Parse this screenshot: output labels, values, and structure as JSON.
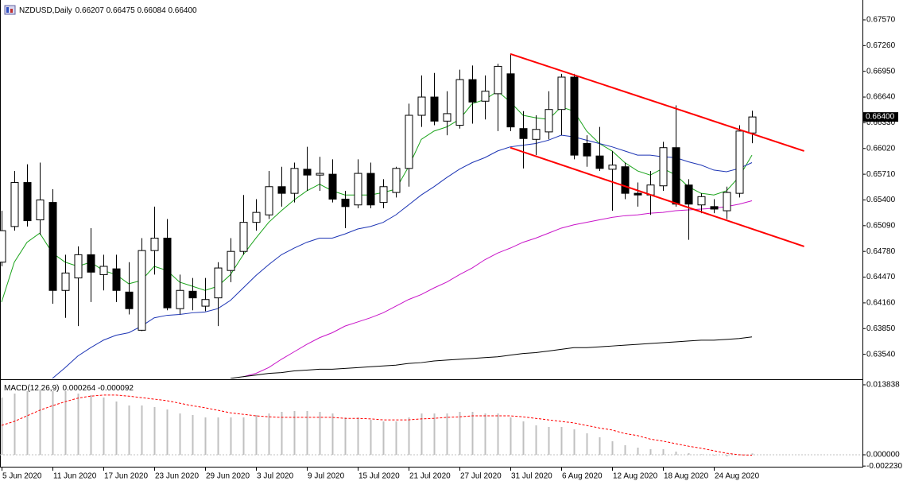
{
  "chart_data": [
    {
      "type": "candlestick",
      "title": "NZDUSD,Daily",
      "subtitle": "0.66207 0.66475 0.66084 0.66400",
      "categories": [
        "5 Jun 2020",
        null,
        null,
        null,
        "11 Jun 2020",
        null,
        null,
        null,
        "17 Jun 2020",
        null,
        null,
        null,
        "23 Jun 2020",
        null,
        null,
        null,
        "29 Jun 2020",
        null,
        null,
        null,
        "3 Jul 2020",
        null,
        null,
        null,
        "9 Jul 2020",
        null,
        null,
        null,
        "15 Jul 2020",
        null,
        null,
        null,
        "21 Jul 2020",
        null,
        null,
        null,
        "27 Jul 2020",
        null,
        null,
        null,
        "31 Jul 2020",
        null,
        null,
        null,
        "6 Aug 2020",
        null,
        null,
        null,
        "12 Aug 2020",
        null,
        null,
        null,
        "18 Aug 2020",
        null,
        null,
        null,
        "24 Aug 2020",
        null,
        null,
        null
      ],
      "open": [
        0.6465,
        0.6508,
        0.6561,
        0.6516,
        0.6537,
        0.6431,
        0.6446,
        0.6474,
        0.645,
        0.6457,
        0.6429,
        0.6383,
        0.6479,
        0.6494,
        0.6409,
        0.643,
        0.6412,
        0.6422,
        0.6455,
        0.6478,
        0.6513,
        0.6522,
        0.6556,
        0.6548,
        0.6577,
        0.657,
        0.6571,
        0.6541,
        0.6534,
        0.6572,
        0.6537,
        0.6549,
        0.6578,
        0.6642,
        0.6664,
        0.6635,
        0.663,
        0.6685,
        0.6659,
        0.6668,
        0.6692,
        0.6626,
        0.6613,
        0.6622,
        0.6649,
        0.6688,
        0.6608,
        0.6593,
        0.6577,
        0.658,
        0.6548,
        0.6546,
        0.6557,
        0.6603,
        0.6558,
        0.6534,
        0.6532,
        0.6527,
        0.6548,
        0.66207
      ],
      "high": [
        0.6527,
        0.6575,
        0.6583,
        0.6585,
        0.6553,
        0.6474,
        0.6484,
        0.6506,
        0.6474,
        0.6474,
        0.6465,
        0.6494,
        0.6532,
        0.6517,
        0.645,
        0.6446,
        0.6446,
        0.6465,
        0.6494,
        0.6546,
        0.6541,
        0.6575,
        0.658,
        0.6585,
        0.6604,
        0.6592,
        0.6589,
        0.6551,
        0.6589,
        0.6585,
        0.6565,
        0.658,
        0.6656,
        0.669,
        0.6693,
        0.6671,
        0.6697,
        0.6702,
        0.669,
        0.6704,
        0.6716,
        0.6647,
        0.6642,
        0.6671,
        0.6692,
        0.6692,
        0.6618,
        0.6628,
        0.6599,
        0.6585,
        0.6561,
        0.6575,
        0.661,
        0.6654,
        0.6565,
        0.6548,
        0.6541,
        0.6556,
        0.663,
        0.66475
      ],
      "low": [
        0.646,
        0.6503,
        0.6508,
        0.6498,
        0.6415,
        0.6398,
        0.6388,
        0.6417,
        0.6431,
        0.6417,
        0.6402,
        0.6382,
        0.645,
        0.6407,
        0.6402,
        0.6407,
        0.6406,
        0.6388,
        0.6441,
        0.6474,
        0.6503,
        0.6517,
        0.6532,
        0.6537,
        0.6551,
        0.6551,
        0.6537,
        0.6506,
        0.653,
        0.653,
        0.653,
        0.6543,
        0.6556,
        0.6628,
        0.663,
        0.6618,
        0.6626,
        0.6632,
        0.6637,
        0.6623,
        0.6623,
        0.6578,
        0.6594,
        0.6613,
        0.6618,
        0.6589,
        0.658,
        0.6575,
        0.6527,
        0.6541,
        0.6532,
        0.6522,
        0.6551,
        0.6532,
        0.6492,
        0.6524,
        0.6524,
        0.6517,
        0.6543,
        0.66084
      ],
      "close": [
        0.6503,
        0.6561,
        0.6515,
        0.654,
        0.6431,
        0.6452,
        0.6474,
        0.6453,
        0.646,
        0.6431,
        0.6409,
        0.6479,
        0.6494,
        0.641,
        0.6431,
        0.6422,
        0.642,
        0.6458,
        0.6478,
        0.6513,
        0.6525,
        0.6556,
        0.6548,
        0.6578,
        0.657,
        0.6572,
        0.6541,
        0.6532,
        0.6572,
        0.6534,
        0.6556,
        0.6578,
        0.6642,
        0.6664,
        0.6635,
        0.6644,
        0.6685,
        0.6658,
        0.6671,
        0.6701,
        0.6628,
        0.6614,
        0.6625,
        0.6649,
        0.6688,
        0.6594,
        0.6593,
        0.6578,
        0.6582,
        0.6548,
        0.6546,
        0.6558,
        0.6603,
        0.6535,
        0.6535,
        0.6544,
        0.6529,
        0.6549,
        0.6623,
        0.664
      ],
      "up_color": "#ffffff",
      "down_color": "#000000",
      "series": [
        {
          "color": "#1aa31a",
          "values": [
            0.6417,
            0.6465,
            0.6489,
            0.65,
            0.6476,
            0.6465,
            0.646,
            0.6465,
            0.6455,
            0.645,
            0.6439,
            0.6443,
            0.646,
            0.6455,
            0.6441,
            0.6436,
            0.6431,
            0.6436,
            0.645,
            0.6474,
            0.6494,
            0.6513,
            0.6527,
            0.654,
            0.6551,
            0.6559,
            0.6551,
            0.6546,
            0.6546,
            0.6546,
            0.6549,
            0.6553,
            0.658,
            0.6613,
            0.6623,
            0.6628,
            0.6637,
            0.6656,
            0.6661,
            0.6671,
            0.6658,
            0.6642,
            0.6639,
            0.6637,
            0.6652,
            0.6647,
            0.6623,
            0.6608,
            0.6599,
            0.6585,
            0.6575,
            0.657,
            0.6578,
            0.657,
            0.6556,
            0.6548,
            0.6546,
            0.6551,
            0.6568,
            0.6594
          ]
        },
        {
          "color": "#1c34b4",
          "values": [
            null,
            null,
            null,
            null,
            0.6325,
            0.6338,
            0.6352,
            0.6362,
            0.6371,
            0.6377,
            0.638,
            0.6388,
            0.6398,
            0.6401,
            0.6402,
            0.6404,
            0.6405,
            0.6409,
            0.6419,
            0.6434,
            0.6449,
            0.6462,
            0.6474,
            0.6482,
            0.6489,
            0.6494,
            0.6494,
            0.6499,
            0.6505,
            0.6508,
            0.6513,
            0.6522,
            0.6534,
            0.6546,
            0.6556,
            0.6567,
            0.6577,
            0.6585,
            0.6591,
            0.6599,
            0.6604,
            0.6606,
            0.6608,
            0.6612,
            0.6618,
            0.6616,
            0.6612,
            0.6608,
            0.6604,
            0.6599,
            0.6594,
            0.6594,
            0.6592,
            0.6591,
            0.6586,
            0.6582,
            0.6576,
            0.6574,
            0.6578,
            0.6585
          ]
        },
        {
          "color": "#c814c8",
          "values": [
            null,
            null,
            null,
            null,
            null,
            null,
            null,
            null,
            null,
            null,
            null,
            null,
            null,
            null,
            null,
            null,
            null,
            null,
            null,
            0.6327,
            0.6331,
            0.6338,
            0.6348,
            0.6357,
            0.6366,
            0.6374,
            0.638,
            0.6388,
            0.6393,
            0.6398,
            0.6404,
            0.6412,
            0.642,
            0.6426,
            0.6434,
            0.6441,
            0.645,
            0.6458,
            0.6468,
            0.6476,
            0.6482,
            0.6489,
            0.6494,
            0.65,
            0.6506,
            0.651,
            0.6513,
            0.6516,
            0.6519,
            0.6521,
            0.6522,
            0.6524,
            0.6525,
            0.6527,
            0.6528,
            0.6529,
            0.653,
            0.6532,
            0.6535,
            0.6539
          ]
        },
        {
          "color": "#000000",
          "values": [
            null,
            null,
            null,
            null,
            null,
            null,
            null,
            null,
            null,
            null,
            null,
            null,
            null,
            null,
            null,
            null,
            null,
            null,
            0.6325,
            0.6327,
            0.6329,
            0.6331,
            0.6332,
            0.6334,
            0.6335,
            0.6336,
            0.6336,
            0.6337,
            0.6338,
            0.6339,
            0.634,
            0.6341,
            0.6343,
            0.6344,
            0.6346,
            0.6347,
            0.6348,
            0.6349,
            0.635,
            0.6351,
            0.6353,
            0.6355,
            0.6356,
            0.6358,
            0.636,
            0.6362,
            0.6362,
            0.6363,
            0.6364,
            0.6365,
            0.6366,
            0.6367,
            0.6368,
            0.6369,
            0.637,
            0.6371,
            0.6371,
            0.6372,
            0.6373,
            0.6375
          ]
        }
      ],
      "trendlines": [
        {
          "color": "#ff0000",
          "x": [
            40,
            63.1
          ],
          "y": [
            0.6716,
            0.6599
          ]
        },
        {
          "color": "#ff0000",
          "x": [
            40,
            63.1
          ],
          "y": [
            0.6603,
            0.6484
          ]
        }
      ],
      "ylim": [
        0.63249,
        0.67771
      ],
      "yticks": [
        {
          "value": 0.6757,
          "label": "0.67570"
        },
        {
          "value": 0.6726,
          "label": "0.67260"
        },
        {
          "value": 0.6695,
          "label": "0.66950"
        },
        {
          "value": 0.6664,
          "label": "0.66640"
        },
        {
          "value": 0.6633,
          "label": "0.66330"
        },
        {
          "value": 0.6602,
          "label": "0.66020"
        },
        {
          "value": 0.6571,
          "label": "0.65710"
        },
        {
          "value": 0.654,
          "label": "0.65400"
        },
        {
          "value": 0.6509,
          "label": "0.65090"
        },
        {
          "value": 0.6478,
          "label": "0.64780"
        },
        {
          "value": 0.6447,
          "label": "0.64470"
        },
        {
          "value": 0.6416,
          "label": "0.64160"
        },
        {
          "value": 0.6385,
          "label": "0.63850"
        },
        {
          "value": 0.6354,
          "label": "0.63540"
        }
      ],
      "price_label": {
        "value": 0.664,
        "label": "0.66400"
      }
    },
    {
      "type": "macd",
      "title": "MACD(12,26,9)",
      "subtitle": "0.000264 -0.000092",
      "histogram": {
        "color": "#c0c0c0",
        "values": [
          0.01132,
          0.0121,
          0.01258,
          0.01289,
          0.01258,
          0.01258,
          0.0121,
          0.01179,
          0.01132,
          0.01053,
          0.00975,
          0.00975,
          0.00943,
          0.00896,
          0.00817,
          0.00786,
          0.00739,
          0.00739,
          0.00739,
          0.00739,
          0.00786,
          0.00817,
          0.00849,
          0.00865,
          0.00865,
          0.00849,
          0.00817,
          0.00739,
          0.00739,
          0.00692,
          0.0066,
          0.0066,
          0.00739,
          0.00817,
          0.00817,
          0.00817,
          0.00849,
          0.00849,
          0.00817,
          0.00817,
          0.00739,
          0.0066,
          0.00582,
          0.0055,
          0.0055,
          0.00503,
          0.00424,
          0.00346,
          0.00267,
          0.00189,
          0.00141,
          0.0011,
          0.0011,
          0.00063,
          0.00031,
          0.0001,
          -0.00016,
          -0.00031,
          0.0001,
          0.000264
        ]
      },
      "signal": {
        "color": "#ff0000",
        "values": [
          0.00582,
          0.0066,
          0.0077,
          0.0088,
          0.0097,
          0.0105,
          0.0112,
          0.0116,
          0.0118,
          0.0118,
          0.0116,
          0.0113,
          0.011,
          0.0107,
          0.0102,
          0.0097,
          0.0093,
          0.0088,
          0.0083,
          0.008,
          0.0077,
          0.0075,
          0.0074,
          0.0074,
          0.0074,
          0.0074,
          0.0074,
          0.0072,
          0.0072,
          0.0071,
          0.0069,
          0.0069,
          0.0069,
          0.0071,
          0.0072,
          0.0074,
          0.0075,
          0.0077,
          0.0077,
          0.0077,
          0.0077,
          0.0075,
          0.0072,
          0.0069,
          0.0066,
          0.0063,
          0.0058,
          0.0053,
          0.0049,
          0.0042,
          0.0038,
          0.0031,
          0.0027,
          0.0022,
          0.0017,
          0.0013,
          0.0008,
          0.0003,
          0,
          -9.2e-05
        ]
      },
      "ylim": [
        -0.00236,
        0.01462
      ],
      "yticks": [
        {
          "value": 0.013838,
          "label": "0.013838"
        },
        {
          "value": 0,
          "label": "0.000000"
        },
        {
          "value": -0.00223,
          "label": "-0.002230"
        }
      ]
    }
  ]
}
